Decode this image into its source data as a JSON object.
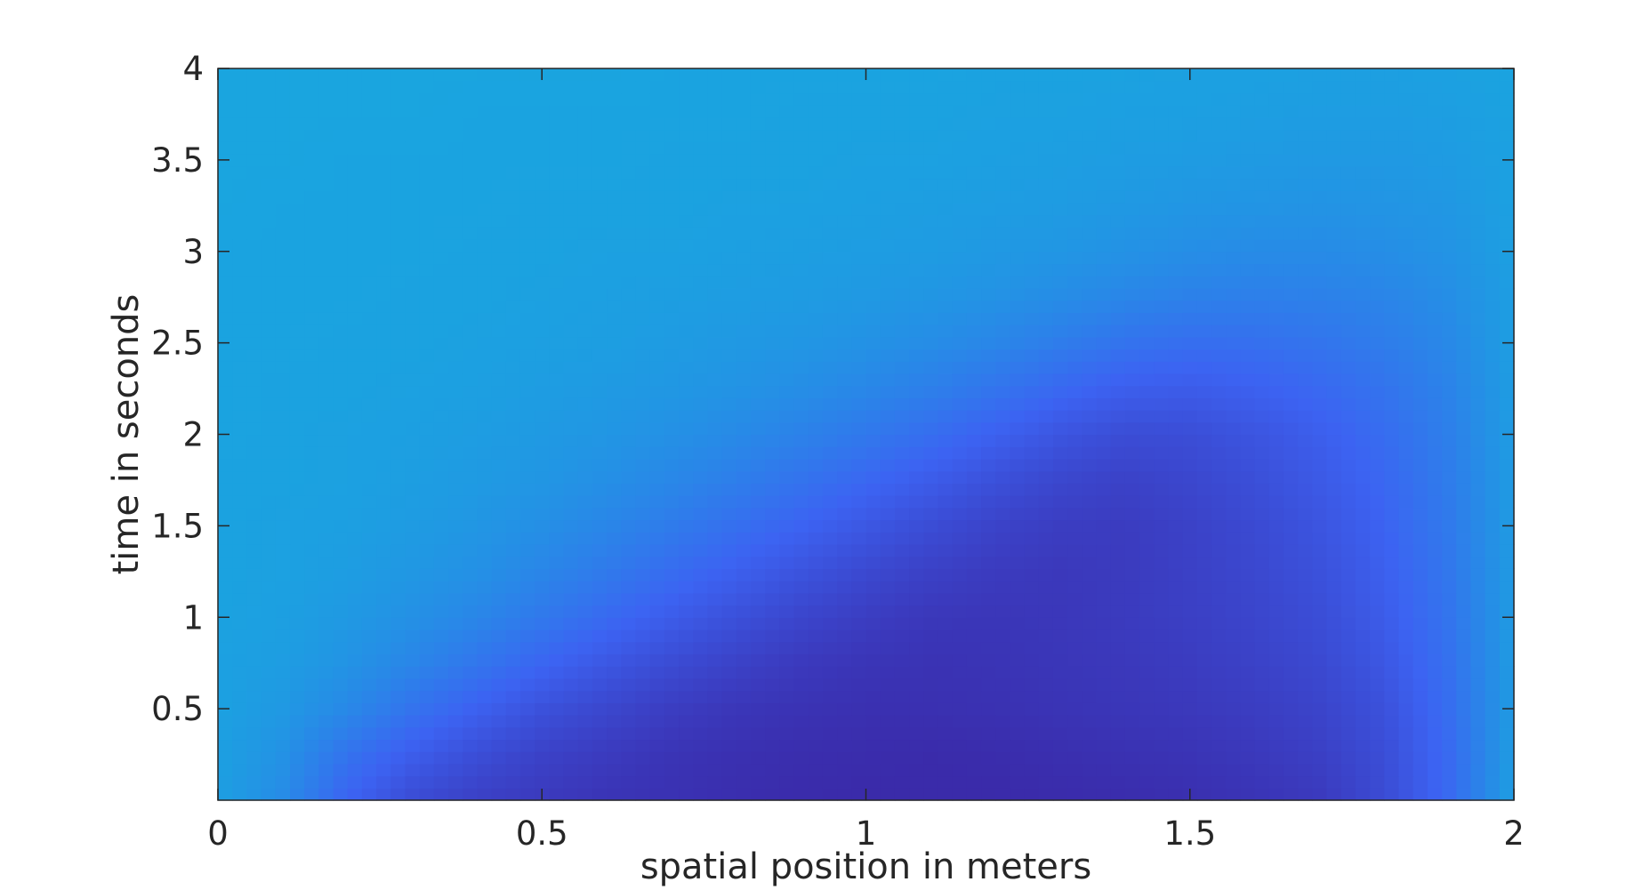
{
  "chart_data": {
    "type": "heatmap",
    "title": "",
    "xlabel": "spatial position in meters",
    "ylabel": "time in seconds",
    "xlim": [
      0,
      2
    ],
    "ylim": [
      0,
      4
    ],
    "xticks": [
      0,
      0.5,
      1,
      1.5,
      2
    ],
    "xtick_labels": [
      "0",
      "0.5",
      "1",
      "1.5",
      "2"
    ],
    "yticks": [
      0.5,
      1,
      1.5,
      2,
      2.5,
      3,
      3.5,
      4
    ],
    "ytick_labels": [
      "0.5",
      "1",
      "1.5",
      "2",
      "2.5",
      "3",
      "3.5",
      "4"
    ],
    "grid": false,
    "colors": {
      "low": "#3a28a6",
      "mid": "#3c63f2",
      "high": "#19a6df",
      "axis": "#262626"
    },
    "z": [
      [
        0.95,
        0.8,
        0.5,
        0.3,
        0.2,
        0.15,
        0.1,
        0.08,
        0.05,
        0.03,
        0.02,
        0.02,
        0.02,
        0.03,
        0.04,
        0.06,
        0.1,
        0.15,
        0.3,
        0.55,
        0.95
      ],
      [
        0.95,
        0.85,
        0.62,
        0.45,
        0.32,
        0.22,
        0.16,
        0.1,
        0.07,
        0.05,
        0.04,
        0.03,
        0.04,
        0.06,
        0.08,
        0.1,
        0.14,
        0.2,
        0.32,
        0.55,
        0.93
      ],
      [
        0.96,
        0.9,
        0.78,
        0.62,
        0.48,
        0.35,
        0.26,
        0.18,
        0.12,
        0.09,
        0.07,
        0.07,
        0.08,
        0.1,
        0.12,
        0.14,
        0.18,
        0.24,
        0.35,
        0.58,
        0.92
      ],
      [
        0.96,
        0.93,
        0.86,
        0.76,
        0.64,
        0.52,
        0.4,
        0.3,
        0.22,
        0.15,
        0.11,
        0.09,
        0.1,
        0.12,
        0.14,
        0.17,
        0.22,
        0.28,
        0.4,
        0.6,
        0.92
      ],
      [
        0.97,
        0.95,
        0.9,
        0.84,
        0.76,
        0.66,
        0.55,
        0.44,
        0.34,
        0.25,
        0.18,
        0.13,
        0.12,
        0.13,
        0.16,
        0.2,
        0.25,
        0.32,
        0.44,
        0.63,
        0.92
      ],
      [
        0.97,
        0.96,
        0.93,
        0.89,
        0.84,
        0.76,
        0.67,
        0.57,
        0.47,
        0.37,
        0.28,
        0.21,
        0.16,
        0.14,
        0.16,
        0.21,
        0.27,
        0.35,
        0.47,
        0.65,
        0.92
      ],
      [
        0.97,
        0.96,
        0.95,
        0.92,
        0.88,
        0.83,
        0.76,
        0.68,
        0.59,
        0.5,
        0.4,
        0.31,
        0.23,
        0.18,
        0.17,
        0.22,
        0.29,
        0.38,
        0.5,
        0.67,
        0.92
      ],
      [
        0.97,
        0.97,
        0.96,
        0.94,
        0.91,
        0.88,
        0.83,
        0.77,
        0.7,
        0.62,
        0.53,
        0.44,
        0.34,
        0.26,
        0.22,
        0.26,
        0.33,
        0.42,
        0.53,
        0.69,
        0.92
      ],
      [
        0.98,
        0.97,
        0.96,
        0.95,
        0.93,
        0.91,
        0.88,
        0.84,
        0.79,
        0.73,
        0.66,
        0.58,
        0.48,
        0.38,
        0.31,
        0.32,
        0.38,
        0.46,
        0.57,
        0.71,
        0.93
      ],
      [
        0.98,
        0.97,
        0.97,
        0.96,
        0.95,
        0.93,
        0.91,
        0.89,
        0.86,
        0.82,
        0.77,
        0.71,
        0.63,
        0.54,
        0.46,
        0.44,
        0.48,
        0.54,
        0.62,
        0.74,
        0.93
      ],
      [
        0.98,
        0.98,
        0.97,
        0.97,
        0.96,
        0.95,
        0.94,
        0.92,
        0.9,
        0.88,
        0.85,
        0.81,
        0.76,
        0.69,
        0.62,
        0.58,
        0.59,
        0.63,
        0.69,
        0.78,
        0.94
      ],
      [
        0.98,
        0.98,
        0.98,
        0.97,
        0.97,
        0.96,
        0.95,
        0.94,
        0.93,
        0.92,
        0.9,
        0.88,
        0.85,
        0.81,
        0.76,
        0.72,
        0.71,
        0.72,
        0.75,
        0.82,
        0.94
      ],
      [
        0.98,
        0.98,
        0.98,
        0.98,
        0.97,
        0.97,
        0.96,
        0.96,
        0.95,
        0.94,
        0.93,
        0.92,
        0.9,
        0.88,
        0.85,
        0.82,
        0.8,
        0.8,
        0.82,
        0.86,
        0.95
      ],
      [
        0.99,
        0.98,
        0.98,
        0.98,
        0.98,
        0.97,
        0.97,
        0.97,
        0.96,
        0.96,
        0.95,
        0.94,
        0.93,
        0.92,
        0.9,
        0.88,
        0.87,
        0.86,
        0.87,
        0.89,
        0.96
      ],
      [
        0.99,
        0.99,
        0.98,
        0.98,
        0.98,
        0.98,
        0.98,
        0.97,
        0.97,
        0.97,
        0.96,
        0.96,
        0.95,
        0.94,
        0.93,
        0.92,
        0.91,
        0.9,
        0.9,
        0.92,
        0.96
      ],
      [
        0.99,
        0.99,
        0.99,
        0.99,
        0.98,
        0.98,
        0.98,
        0.98,
        0.98,
        0.97,
        0.97,
        0.97,
        0.96,
        0.96,
        0.95,
        0.95,
        0.94,
        0.93,
        0.93,
        0.94,
        0.97
      ],
      [
        0.99,
        0.99,
        0.99,
        0.99,
        0.99,
        0.99,
        0.99,
        0.98,
        0.98,
        0.98,
        0.98,
        0.98,
        0.97,
        0.97,
        0.97,
        0.96,
        0.96,
        0.95,
        0.95,
        0.96,
        0.98
      ]
    ]
  }
}
